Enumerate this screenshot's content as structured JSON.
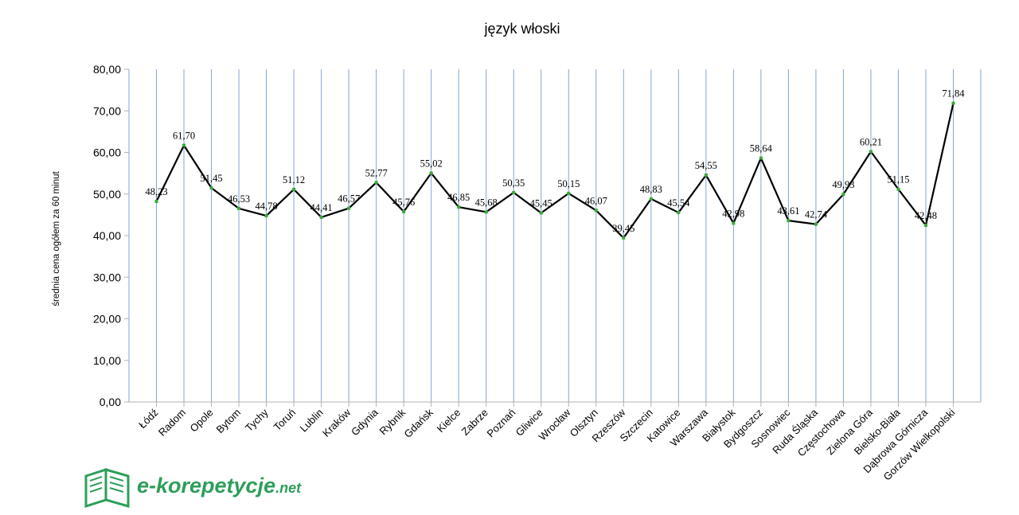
{
  "chart_data": {
    "type": "line",
    "title": "język włoski",
    "ylabel": "średnia cena ogółem za 60 minut",
    "xlabel": "",
    "ylim": [
      0,
      80
    ],
    "yticks": [
      "0,00",
      "10,00",
      "20,00",
      "30,00",
      "40,00",
      "50,00",
      "60,00",
      "70,00",
      "80,00"
    ],
    "grid": "vertical",
    "categories": [
      "Łódź",
      "Radom",
      "Opole",
      "Bytom",
      "Tychy",
      "Toruń",
      "Lublin",
      "Kraków",
      "Gdynia",
      "Rybnik",
      "Gdańsk",
      "Kielce",
      "Zabrze",
      "Poznań",
      "Gliwice",
      "Wrocław",
      "Olsztyn",
      "Rzeszów",
      "Szczecin",
      "Katowice",
      "Warszawa",
      "Białystok",
      "Bydgoszcz",
      "Sosnowiec",
      "Ruda Śląska",
      "Częstochowa",
      "Zielona Góra",
      "Bielsko-Biała",
      "Dąbrowa Górnicza",
      "Gorzów Wielkopolski"
    ],
    "values": [
      48.23,
      61.7,
      51.45,
      46.53,
      44.78,
      51.12,
      44.41,
      46.57,
      52.77,
      45.76,
      55.02,
      46.85,
      45.68,
      50.35,
      45.45,
      50.15,
      46.07,
      39.45,
      48.83,
      45.54,
      54.55,
      42.98,
      58.64,
      43.61,
      42.74,
      49.93,
      60.21,
      51.15,
      42.48,
      71.84
    ],
    "value_labels": [
      "48,23",
      "61,70",
      "51,45",
      "46,53",
      "44,78",
      "51,12",
      "44,41",
      "46,57",
      "52,77",
      "45,76",
      "55,02",
      "46,85",
      "45,68",
      "50,35",
      "45,45",
      "50,15",
      "46,07",
      "39,45",
      "48,83",
      "45,54",
      "54,55",
      "42,98",
      "58,64",
      "43,61",
      "42,74",
      "49,93",
      "60,21",
      "51,15",
      "42,48",
      "71,84"
    ],
    "colors": {
      "line": "#000000",
      "marker": "#3aa83a",
      "grid": "#7fa8cf",
      "axis": "#b3b3b3"
    }
  },
  "logo": {
    "name": "e-korepetycje",
    "suffix": ".net",
    "icon": "open-book-icon",
    "color": "#2e9e5a"
  }
}
